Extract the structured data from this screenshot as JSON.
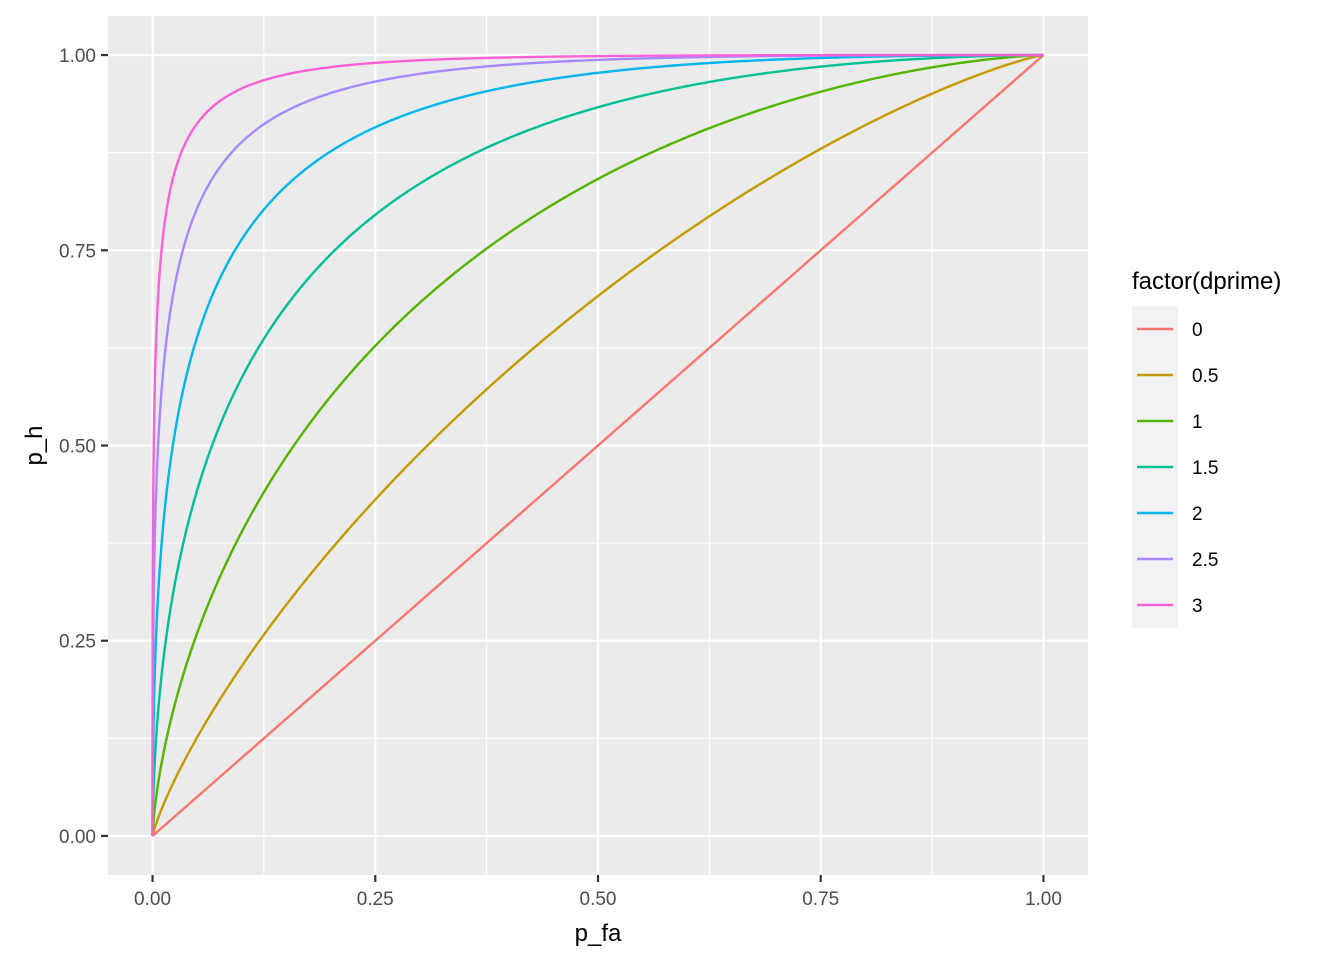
{
  "chart_data": {
    "type": "line",
    "xlabel": "p_fa",
    "ylabel": "p_h",
    "xlim": [
      -0.05,
      1.05
    ],
    "ylim": [
      -0.05,
      1.05
    ],
    "x_ticks": [
      0,
      0.25,
      0.5,
      0.75,
      1
    ],
    "y_ticks": [
      0,
      0.25,
      0.5,
      0.75,
      1
    ],
    "x_tick_labels": [
      "0.00",
      "0.25",
      "0.50",
      "0.75",
      "1.00"
    ],
    "y_tick_labels": [
      "0.00",
      "0.25",
      "0.50",
      "0.75",
      "1.00"
    ],
    "grid": true,
    "legend": {
      "title": "factor(dprime)",
      "placement": "right"
    },
    "series": [
      {
        "name": "0",
        "dprime": 0,
        "color": "#F8766D"
      },
      {
        "name": "0.5",
        "dprime": 0.5,
        "color": "#C49A00"
      },
      {
        "name": "1",
        "dprime": 1,
        "color": "#53B400"
      },
      {
        "name": "1.5",
        "dprime": 1.5,
        "color": "#00C094"
      },
      {
        "name": "2",
        "dprime": 2,
        "color": "#00B6EB"
      },
      {
        "name": "2.5",
        "dprime": 2.5,
        "color": "#A58AFF"
      },
      {
        "name": "3",
        "dprime": 3,
        "color": "#FB61D7"
      }
    ],
    "panel_background": "#EBEBEB",
    "grid_color": "#FFFFFF"
  }
}
